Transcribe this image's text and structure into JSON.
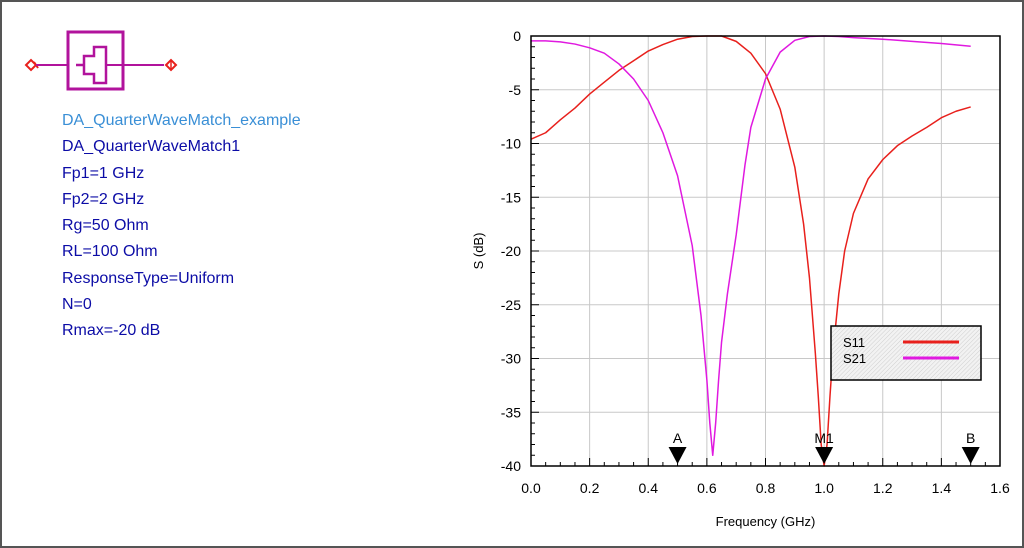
{
  "component": {
    "icon": "quarter-wave-match-symbol-icon",
    "lines": [
      "DA_QuarterWaveMatch_example",
      "DA_QuarterWaveMatch1",
      "Fp1=1 GHz",
      "Fp2=2 GHz",
      "Rg=50 Ohm",
      "RL=100 Ohm",
      "ResponseType=Uniform",
      "N=0",
      "Rmax=-20 dB"
    ]
  },
  "colors": {
    "s11": "#e8201c",
    "s21": "#e019e0",
    "symbol": "#b1139c",
    "component_name": "#3a8fd6",
    "params": "#0c0ca6"
  },
  "chart_data": {
    "type": "line",
    "xlabel": "Frequency (GHz)",
    "ylabel": "S (dB)",
    "xlim": [
      0,
      1.6
    ],
    "ylim": [
      -40,
      0
    ],
    "xticks": [
      "0.0",
      "0.2",
      "0.4",
      "0.6",
      "0.8",
      "1.0",
      "1.2",
      "1.4",
      "1.6"
    ],
    "yticks": [
      "0",
      "-5",
      "-10",
      "-15",
      "-20",
      "-25",
      "-30",
      "-35",
      "-40"
    ],
    "grid": true,
    "legend": "lower-right",
    "series": [
      {
        "name": "S11",
        "color": "#e8201c",
        "x": [
          0.0,
          0.05,
          0.1,
          0.15,
          0.2,
          0.25,
          0.3,
          0.35,
          0.4,
          0.45,
          0.5,
          0.55,
          0.6,
          0.65,
          0.7,
          0.75,
          0.8,
          0.85,
          0.9,
          0.93,
          0.95,
          0.97,
          0.98,
          0.99,
          1.0,
          1.01,
          1.02,
          1.03,
          1.05,
          1.07,
          1.1,
          1.15,
          1.2,
          1.25,
          1.3,
          1.35,
          1.4,
          1.45,
          1.5
        ],
        "values": [
          -9.6,
          -9.0,
          -7.8,
          -6.7,
          -5.4,
          -4.3,
          -3.2,
          -2.3,
          -1.4,
          -0.8,
          -0.3,
          -0.05,
          0.0,
          0.0,
          -0.5,
          -1.6,
          -3.5,
          -6.8,
          -12.2,
          -17.5,
          -22.5,
          -29.5,
          -33.5,
          -38.0,
          -40.0,
          -38.0,
          -33.5,
          -29.5,
          -24.0,
          -20.0,
          -16.5,
          -13.3,
          -11.5,
          -10.2,
          -9.3,
          -8.5,
          -7.6,
          -7.0,
          -6.6
        ]
      },
      {
        "name": "S21",
        "color": "#e019e0",
        "x": [
          0.0,
          0.05,
          0.1,
          0.15,
          0.2,
          0.25,
          0.3,
          0.35,
          0.4,
          0.45,
          0.5,
          0.55,
          0.58,
          0.6,
          0.61,
          0.62,
          0.63,
          0.64,
          0.65,
          0.67,
          0.7,
          0.73,
          0.75,
          0.8,
          0.85,
          0.9,
          0.95,
          1.0,
          1.05,
          1.1,
          1.2,
          1.3,
          1.4,
          1.5
        ],
        "values": [
          -0.45,
          -0.45,
          -0.55,
          -0.75,
          -1.1,
          -1.6,
          -2.6,
          -4.0,
          -6.0,
          -9.0,
          -13.0,
          -19.5,
          -26.0,
          -32.0,
          -36.0,
          -39.0,
          -36.0,
          -32.0,
          -28.5,
          -24.0,
          -18.5,
          -12.0,
          -8.5,
          -4.0,
          -1.5,
          -0.4,
          -0.05,
          0.0,
          -0.05,
          -0.15,
          -0.3,
          -0.5,
          -0.7,
          -0.95
        ]
      }
    ],
    "markers": [
      {
        "label": "A",
        "x": 0.5
      },
      {
        "label": "M1",
        "x": 1.0
      },
      {
        "label": "B",
        "x": 1.5
      }
    ]
  }
}
